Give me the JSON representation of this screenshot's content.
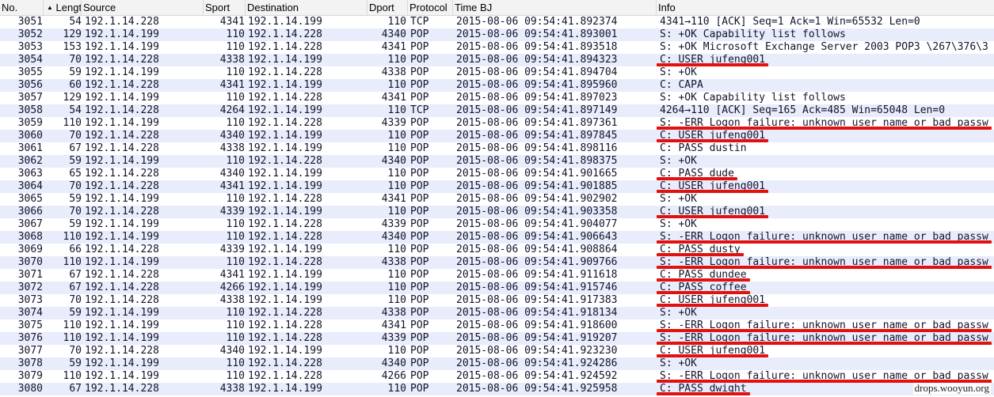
{
  "columns": {
    "no": "No.",
    "length": "Length",
    "source": "Source",
    "sport": "Sport",
    "destination": "Destination",
    "dport": "Dport",
    "protocol": "Protocol",
    "time": "Time BJ",
    "info": "Info",
    "sort_indicator": "▲"
  },
  "colors": {
    "row_alt": "#e8ecfb",
    "row_text": "#12142d",
    "annotation_red": "#e31010"
  },
  "packets": [
    {
      "no": "3051",
      "len": "54",
      "src": "192.1.14.228",
      "sport": "4341",
      "dst": "192.1.14.199",
      "dport": "110",
      "proto": "TCP",
      "time": "2015-08-06 09:54:41.892374",
      "info": "4341→110 [ACK] Seq=1 Ack=1 Win=65532 Len=0",
      "marked": false
    },
    {
      "no": "3052",
      "len": "129",
      "src": "192.1.14.199",
      "sport": "110",
      "dst": "192.1.14.228",
      "dport": "4340",
      "proto": "POP",
      "time": "2015-08-06 09:54:41.893001",
      "info": "S: +OK Capability list follows",
      "marked": false
    },
    {
      "no": "3053",
      "len": "153",
      "src": "192.1.14.199",
      "sport": "110",
      "dst": "192.1.14.228",
      "dport": "4341",
      "proto": "POP",
      "time": "2015-08-06 09:54:41.893518",
      "info": "S: +OK Microsoft Exchange Server 2003 POP3 \\267\\376\\3",
      "marked": false
    },
    {
      "no": "3054",
      "len": "70",
      "src": "192.1.14.228",
      "sport": "4338",
      "dst": "192.1.14.199",
      "dport": "110",
      "proto": "POP",
      "time": "2015-08-06 09:54:41.894323",
      "info": "C: USER jufeng001",
      "marked": true
    },
    {
      "no": "3055",
      "len": "59",
      "src": "192.1.14.199",
      "sport": "110",
      "dst": "192.1.14.228",
      "dport": "4338",
      "proto": "POP",
      "time": "2015-08-06 09:54:41.894704",
      "info": "S: +OK",
      "marked": false
    },
    {
      "no": "3056",
      "len": "60",
      "src": "192.1.14.228",
      "sport": "4341",
      "dst": "192.1.14.199",
      "dport": "110",
      "proto": "POP",
      "time": "2015-08-06 09:54:41.895960",
      "info": "C: CAPA",
      "marked": false
    },
    {
      "no": "3057",
      "len": "129",
      "src": "192.1.14.199",
      "sport": "110",
      "dst": "192.1.14.228",
      "dport": "4341",
      "proto": "POP",
      "time": "2015-08-06 09:54:41.897023",
      "info": "S: +OK Capability list follows",
      "marked": false
    },
    {
      "no": "3058",
      "len": "54",
      "src": "192.1.14.228",
      "sport": "4264",
      "dst": "192.1.14.199",
      "dport": "110",
      "proto": "TCP",
      "time": "2015-08-06 09:54:41.897149",
      "info": "4264→110 [ACK] Seq=165 Ack=485 Win=65048 Len=0",
      "marked": false
    },
    {
      "no": "3059",
      "len": "110",
      "src": "192.1.14.199",
      "sport": "110",
      "dst": "192.1.14.228",
      "dport": "4339",
      "proto": "POP",
      "time": "2015-08-06 09:54:41.897361",
      "info": "S: -ERR Logon failure: unknown user name or bad passw",
      "marked": true
    },
    {
      "no": "3060",
      "len": "70",
      "src": "192.1.14.228",
      "sport": "4340",
      "dst": "192.1.14.199",
      "dport": "110",
      "proto": "POP",
      "time": "2015-08-06 09:54:41.897845",
      "info": "C: USER jufeng001",
      "marked": true
    },
    {
      "no": "3061",
      "len": "67",
      "src": "192.1.14.228",
      "sport": "4338",
      "dst": "192.1.14.199",
      "dport": "110",
      "proto": "POP",
      "time": "2015-08-06 09:54:41.898116",
      "info": "C: PASS dustin",
      "marked": false
    },
    {
      "no": "3062",
      "len": "59",
      "src": "192.1.14.199",
      "sport": "110",
      "dst": "192.1.14.228",
      "dport": "4340",
      "proto": "POP",
      "time": "2015-08-06 09:54:41.898375",
      "info": "S: +OK",
      "marked": false
    },
    {
      "no": "3063",
      "len": "65",
      "src": "192.1.14.228",
      "sport": "4340",
      "dst": "192.1.14.199",
      "dport": "110",
      "proto": "POP",
      "time": "2015-08-06 09:54:41.901665",
      "info": "C: PASS dude",
      "marked": true
    },
    {
      "no": "3064",
      "len": "70",
      "src": "192.1.14.228",
      "sport": "4341",
      "dst": "192.1.14.199",
      "dport": "110",
      "proto": "POP",
      "time": "2015-08-06 09:54:41.901885",
      "info": "C: USER jufeng001",
      "marked": true
    },
    {
      "no": "3065",
      "len": "59",
      "src": "192.1.14.199",
      "sport": "110",
      "dst": "192.1.14.228",
      "dport": "4341",
      "proto": "POP",
      "time": "2015-08-06 09:54:41.902902",
      "info": "S: +OK",
      "marked": false
    },
    {
      "no": "3066",
      "len": "70",
      "src": "192.1.14.228",
      "sport": "4339",
      "dst": "192.1.14.199",
      "dport": "110",
      "proto": "POP",
      "time": "2015-08-06 09:54:41.903358",
      "info": "C: USER jufeng001",
      "marked": true
    },
    {
      "no": "3067",
      "len": "59",
      "src": "192.1.14.199",
      "sport": "110",
      "dst": "192.1.14.228",
      "dport": "4339",
      "proto": "POP",
      "time": "2015-08-06 09:54:41.904077",
      "info": "S: +OK",
      "marked": false
    },
    {
      "no": "3068",
      "len": "110",
      "src": "192.1.14.199",
      "sport": "110",
      "dst": "192.1.14.228",
      "dport": "4340",
      "proto": "POP",
      "time": "2015-08-06 09:54:41.906643",
      "info": "S: -ERR Logon failure: unknown user name or bad passw",
      "marked": true
    },
    {
      "no": "3069",
      "len": "66",
      "src": "192.1.14.228",
      "sport": "4339",
      "dst": "192.1.14.199",
      "dport": "110",
      "proto": "POP",
      "time": "2015-08-06 09:54:41.908864",
      "info": "C: PASS dusty",
      "marked": true
    },
    {
      "no": "3070",
      "len": "110",
      "src": "192.1.14.199",
      "sport": "110",
      "dst": "192.1.14.228",
      "dport": "4338",
      "proto": "POP",
      "time": "2015-08-06 09:54:41.909766",
      "info": "S: -ERR Logon failure: unknown user name or bad passw",
      "marked": true
    },
    {
      "no": "3071",
      "len": "67",
      "src": "192.1.14.228",
      "sport": "4341",
      "dst": "192.1.14.199",
      "dport": "110",
      "proto": "POP",
      "time": "2015-08-06 09:54:41.911618",
      "info": "C: PASS dundee",
      "marked": true
    },
    {
      "no": "3072",
      "len": "67",
      "src": "192.1.14.228",
      "sport": "4266",
      "dst": "192.1.14.199",
      "dport": "110",
      "proto": "POP",
      "time": "2015-08-06 09:54:41.915746",
      "info": "C: PASS coffee",
      "marked": true
    },
    {
      "no": "3073",
      "len": "70",
      "src": "192.1.14.228",
      "sport": "4338",
      "dst": "192.1.14.199",
      "dport": "110",
      "proto": "POP",
      "time": "2015-08-06 09:54:41.917383",
      "info": "C: USER jufeng001",
      "marked": true
    },
    {
      "no": "3074",
      "len": "59",
      "src": "192.1.14.199",
      "sport": "110",
      "dst": "192.1.14.228",
      "dport": "4338",
      "proto": "POP",
      "time": "2015-08-06 09:54:41.918134",
      "info": "S: +OK",
      "marked": false
    },
    {
      "no": "3075",
      "len": "110",
      "src": "192.1.14.199",
      "sport": "110",
      "dst": "192.1.14.228",
      "dport": "4341",
      "proto": "POP",
      "time": "2015-08-06 09:54:41.918600",
      "info": "S: -ERR Logon failure: unknown user name or bad passw",
      "marked": true
    },
    {
      "no": "3076",
      "len": "110",
      "src": "192.1.14.199",
      "sport": "110",
      "dst": "192.1.14.228",
      "dport": "4339",
      "proto": "POP",
      "time": "2015-08-06 09:54:41.919207",
      "info": "S: -ERR Logon failure: unknown user name or bad passw",
      "marked": true
    },
    {
      "no": "3077",
      "len": "70",
      "src": "192.1.14.228",
      "sport": "4340",
      "dst": "192.1.14.199",
      "dport": "110",
      "proto": "POP",
      "time": "2015-08-06 09:54:41.923230",
      "info": "C: USER jufeng001",
      "marked": true
    },
    {
      "no": "3078",
      "len": "59",
      "src": "192.1.14.199",
      "sport": "110",
      "dst": "192.1.14.228",
      "dport": "4340",
      "proto": "POP",
      "time": "2015-08-06 09:54:41.924286",
      "info": "S: +OK",
      "marked": false
    },
    {
      "no": "3079",
      "len": "110",
      "src": "192.1.14.199",
      "sport": "110",
      "dst": "192.1.14.228",
      "dport": "4266",
      "proto": "POP",
      "time": "2015-08-06 09:54:41.924592",
      "info": "S: -ERR Logon failure: unknown user name or bad passw",
      "marked": true
    },
    {
      "no": "3080",
      "len": "67",
      "src": "192.1.14.228",
      "sport": "4338",
      "dst": "192.1.14.199",
      "dport": "110",
      "proto": "POP",
      "time": "2015-08-06 09:54:41.925958",
      "info": "C: PASS dwight",
      "marked": true
    }
  ],
  "watermark": "drops.wooyun.org"
}
